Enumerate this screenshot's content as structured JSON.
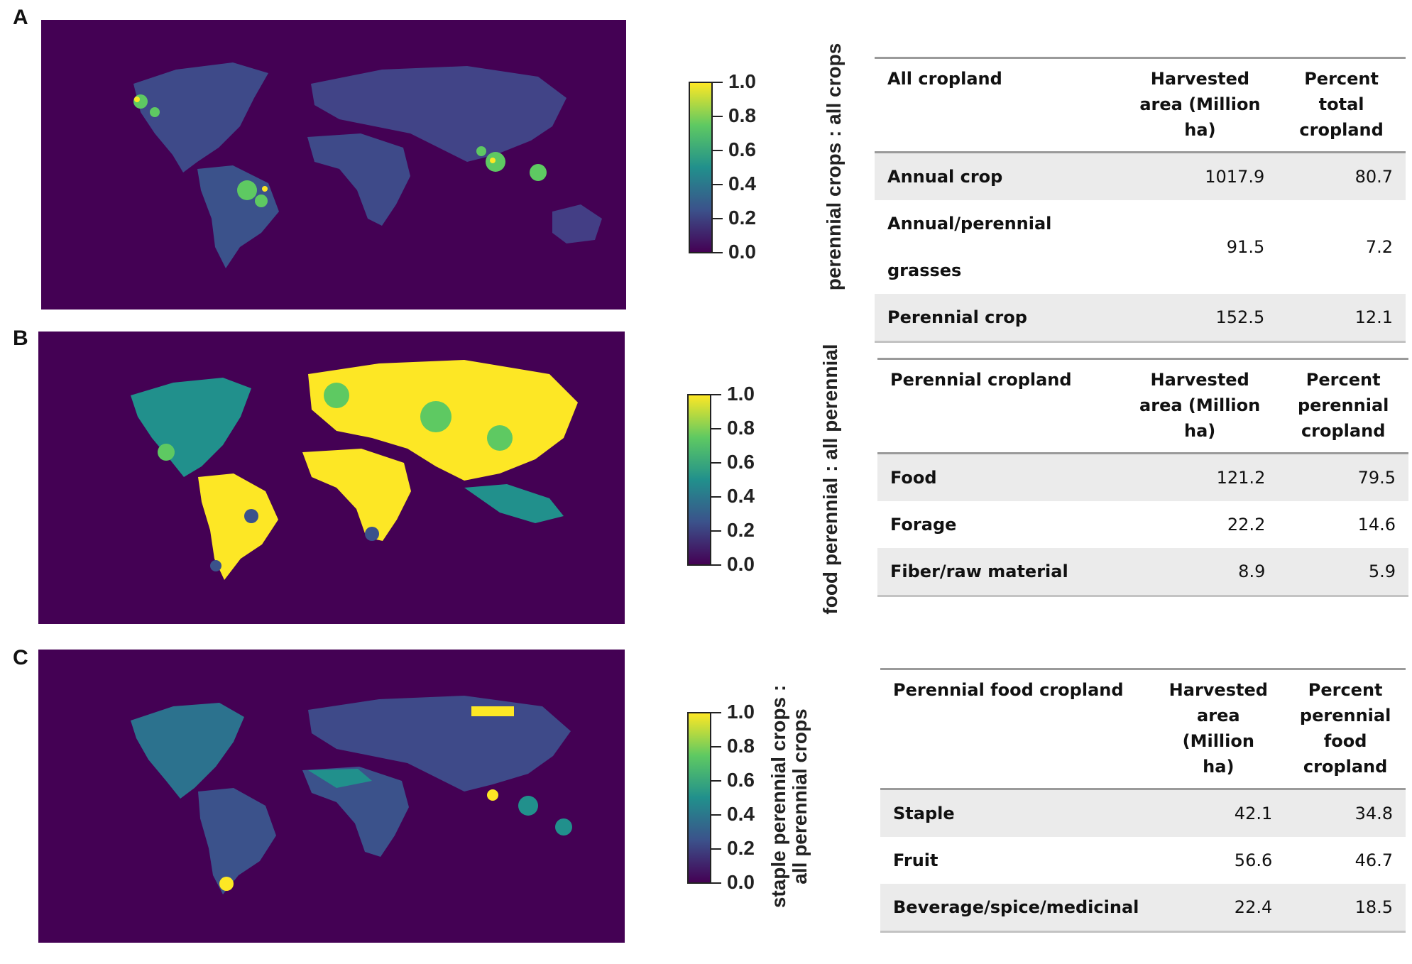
{
  "panels": [
    {
      "letter": "A",
      "colorbar": {
        "title_lines": [
          "perennial crops : all crops"
        ],
        "ticks": [
          "1.0",
          "0.8",
          "0.6",
          "0.4",
          "0.2",
          "0.0"
        ]
      },
      "table": {
        "headers": [
          "All cropland",
          "Harvested area (Million ha)",
          "Percent total cropland"
        ],
        "rows": [
          {
            "label": "Annual crop",
            "area": "1017.9",
            "percent": "80.7"
          },
          {
            "label": "Annual/perennial grasses",
            "area": "91.5",
            "percent": "7.2"
          },
          {
            "label": "Perennial crop",
            "area": "152.5",
            "percent": "12.1"
          }
        ]
      }
    },
    {
      "letter": "B",
      "colorbar": {
        "title_lines": [
          "food perennial : all perennial"
        ],
        "ticks": [
          "1.0",
          "0.8",
          "0.6",
          "0.4",
          "0.2",
          "0.0"
        ]
      },
      "table": {
        "headers": [
          "Perennial cropland",
          "Harvested area (Million ha)",
          "Percent perennial cropland"
        ],
        "rows": [
          {
            "label": "Food",
            "area": "121.2",
            "percent": "79.5"
          },
          {
            "label": "Forage",
            "area": "22.2",
            "percent": "14.6"
          },
          {
            "label": "Fiber/raw material",
            "area": "8.9",
            "percent": "5.9"
          }
        ]
      }
    },
    {
      "letter": "C",
      "colorbar": {
        "title_lines": [
          "staple perennial crops :",
          "all perennial crops"
        ],
        "ticks": [
          "1.0",
          "0.8",
          "0.6",
          "0.4",
          "0.2",
          "0.0"
        ]
      },
      "table": {
        "headers": [
          "Perennial food cropland",
          "Harvested area (Million ha)",
          "Percent perennial food cropland"
        ],
        "rows": [
          {
            "label": "Staple",
            "area": "42.1",
            "percent": "34.8"
          },
          {
            "label": "Fruit",
            "area": "56.6",
            "percent": "46.7"
          },
          {
            "label": "Beverage/spice/medicinal",
            "area": "22.4",
            "percent": "18.5"
          }
        ]
      }
    }
  ],
  "palette": {
    "background": "#440154",
    "low": "#3b528b",
    "mid": "#21908c",
    "high": "#5ec962",
    "max": "#fde725"
  }
}
